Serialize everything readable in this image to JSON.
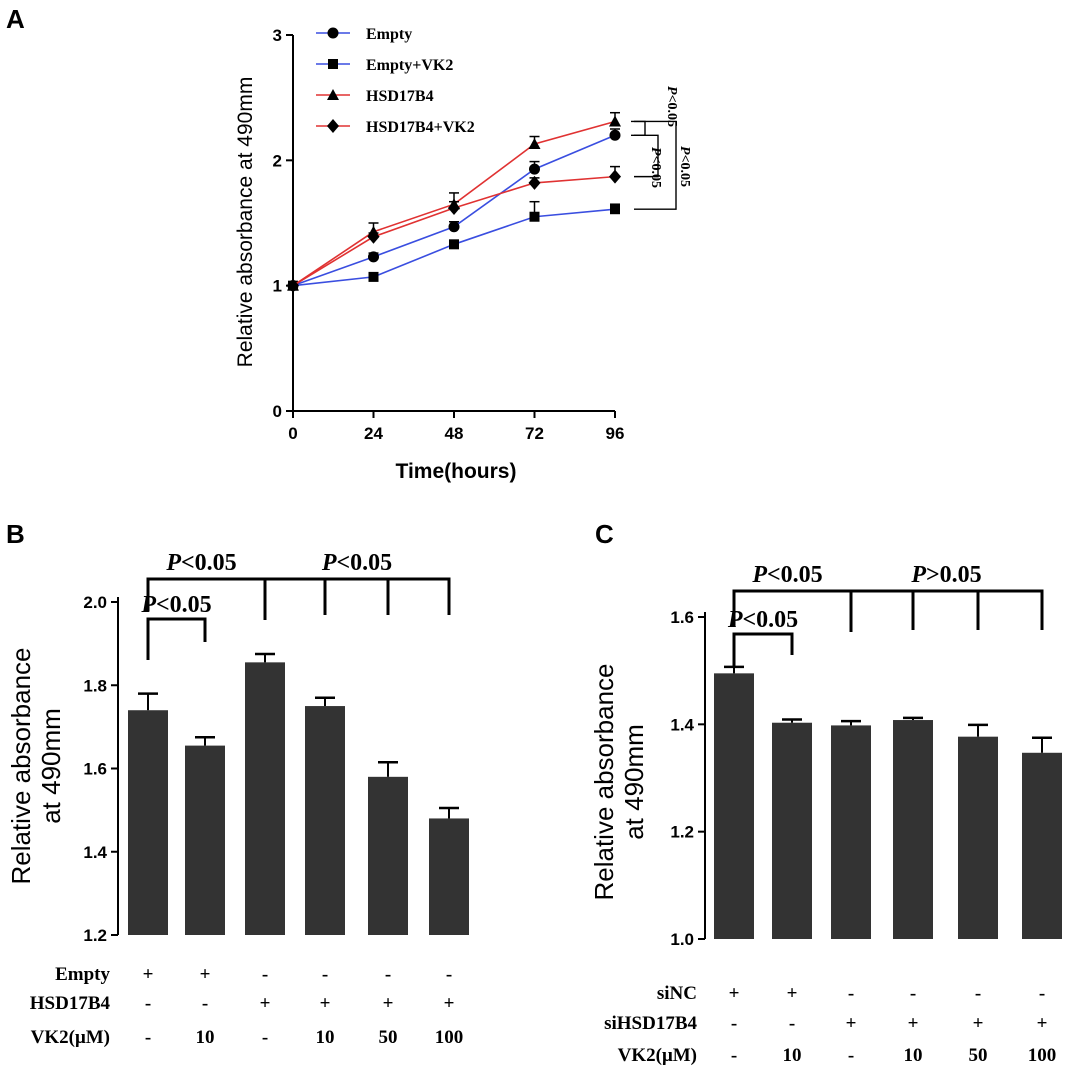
{
  "panels": {
    "a": "A",
    "b": "B",
    "c": "C"
  },
  "colors": {
    "blue": "#3a4ee0",
    "red": "#e03232",
    "bar": "#333333",
    "axis": "#000000"
  },
  "chart_data": [
    {
      "id": "A",
      "type": "line",
      "xlabel": "Time(hours)",
      "ylabel": "Relative absorbance at 490mm",
      "x": [
        0,
        24,
        48,
        72,
        96
      ],
      "xticks": [
        "0",
        "24",
        "48",
        "72",
        "96"
      ],
      "yticks": [
        "0",
        "1",
        "2",
        "3"
      ],
      "ylim": [
        0,
        3
      ],
      "series": [
        {
          "name": "Empty",
          "marker": "circle",
          "color": "blue",
          "values": [
            1.0,
            1.23,
            1.47,
            1.93,
            2.2
          ],
          "errors": [
            0,
            0.03,
            0.04,
            0.06,
            0.05
          ]
        },
        {
          "name": "Empty+VK2",
          "marker": "square",
          "color": "blue",
          "values": [
            1.0,
            1.07,
            1.33,
            1.55,
            1.61
          ],
          "errors": [
            0,
            0.02,
            0.03,
            0.12,
            0.04
          ]
        },
        {
          "name": "HSD17B4",
          "marker": "triangle",
          "color": "red",
          "values": [
            1.0,
            1.43,
            1.65,
            2.13,
            2.31
          ],
          "errors": [
            0,
            0.07,
            0.09,
            0.06,
            0.07
          ]
        },
        {
          "name": "HSD17B4+VK2",
          "marker": "diamond",
          "color": "red",
          "values": [
            1.0,
            1.39,
            1.62,
            1.82,
            1.87
          ],
          "errors": [
            0,
            0.03,
            0.05,
            0.04,
            0.08
          ]
        }
      ],
      "annotations": [
        "P<0.05",
        "P<0.05",
        "P<0.05"
      ]
    },
    {
      "id": "B",
      "type": "bar",
      "ylabel": "Relative absorbance at 490mm",
      "ylabel_lines": [
        "Relative absorbance",
        "at 490mm"
      ],
      "ylim": [
        1.2,
        2.0
      ],
      "yticks": [
        "1.2",
        "1.4",
        "1.6",
        "1.8",
        "2.0"
      ],
      "values": [
        1.74,
        1.655,
        1.855,
        1.75,
        1.58,
        1.48
      ],
      "errors": [
        0.04,
        0.02,
        0.02,
        0.02,
        0.035,
        0.025
      ],
      "rows": [
        {
          "label": "Empty",
          "cells": [
            "+",
            "+",
            "-",
            "-",
            "-",
            "-"
          ]
        },
        {
          "label": "HSD17B4",
          "cells": [
            "-",
            "-",
            "+",
            "+",
            "+",
            "+"
          ]
        },
        {
          "label": "VK2(μM)",
          "cells": [
            "-",
            "10",
            "-",
            "10",
            "50",
            "100"
          ]
        }
      ],
      "annotations": [
        {
          "prefix": "P",
          "text": "<0.05"
        },
        {
          "prefix": "P",
          "text": "<0.05"
        },
        {
          "prefix": "P",
          "text": "<0.05"
        }
      ]
    },
    {
      "id": "C",
      "type": "bar",
      "ylabel": "Relative absorbance at 490mm",
      "ylabel_lines": [
        "Relative absorbance",
        "at 490mm"
      ],
      "ylim": [
        1.0,
        1.6
      ],
      "yticks": [
        "1.0",
        "1.2",
        "1.4",
        "1.6"
      ],
      "values": [
        1.495,
        1.403,
        1.398,
        1.408,
        1.377,
        1.347
      ],
      "errors": [
        0.012,
        0.006,
        0.008,
        0.004,
        0.022,
        0.028
      ],
      "rows": [
        {
          "label": "siNC",
          "cells": [
            "+",
            "+",
            "-",
            "-",
            "-",
            "-"
          ]
        },
        {
          "label": "siHSD17B4",
          "cells": [
            "-",
            "-",
            "+",
            "+",
            "+",
            "+"
          ]
        },
        {
          "label": "VK2(μM)",
          "cells": [
            "-",
            "10",
            "-",
            "10",
            "50",
            "100"
          ]
        }
      ],
      "annotations": [
        {
          "prefix": "P",
          "text": "<0.05"
        },
        {
          "prefix": "P",
          "text": "<0.05"
        },
        {
          "prefix": "P",
          "text": ">0.05"
        }
      ]
    }
  ]
}
